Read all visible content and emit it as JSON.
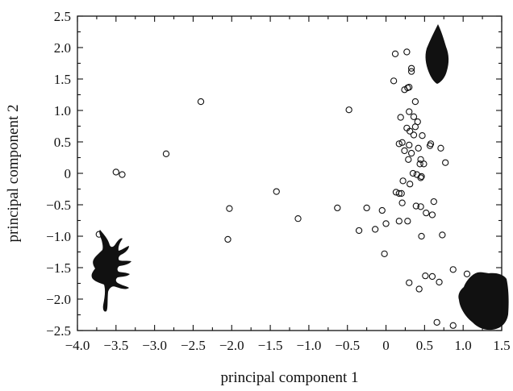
{
  "chart_data": {
    "type": "scatter",
    "title": "",
    "xlabel": "principal component 1",
    "ylabel": "principal component 2",
    "xlim": [
      -4.0,
      1.5
    ],
    "ylim": [
      -2.5,
      2.5
    ],
    "xticks": [
      -4.0,
      -3.5,
      -3.0,
      -2.5,
      -2.0,
      -1.5,
      -1.0,
      -0.5,
      0,
      0.5,
      1.0,
      1.5
    ],
    "xtick_labels": [
      "−4.0",
      "−3.5",
      "−3.0",
      "−2.5",
      "−2.0",
      "−1.5",
      "−1.0",
      "−0.5",
      "0",
      "0.5",
      "1.0",
      "1.5"
    ],
    "yticks": [
      2.5,
      2.0,
      1.5,
      1.0,
      0.5,
      0,
      -0.5,
      -1.0,
      -1.5,
      -2.0,
      -2.5
    ],
    "ytick_labels": [
      "2.5",
      "2.0",
      "1.5",
      "1.0",
      "0.5",
      "0",
      "−0.5",
      "−1.0",
      "−1.5",
      "−2.0",
      "−2.5"
    ],
    "grid": false,
    "marker": "open-circle",
    "color": "#111111",
    "series": [
      {
        "points": [
          [
            -3.72,
            -0.97
          ],
          [
            -3.5,
            0.02
          ],
          [
            -3.42,
            -0.02
          ],
          [
            -2.85,
            0.31
          ],
          [
            -2.4,
            1.14
          ],
          [
            -2.03,
            -0.56
          ],
          [
            -2.05,
            -1.05
          ],
          [
            -1.42,
            -0.29
          ],
          [
            -1.14,
            -0.72
          ],
          [
            -0.63,
            -0.55
          ],
          [
            -0.48,
            1.01
          ],
          [
            -0.35,
            -0.91
          ],
          [
            -0.25,
            -0.55
          ],
          [
            -0.14,
            -0.89
          ],
          [
            -0.05,
            -0.59
          ],
          [
            0.0,
            -0.8
          ],
          [
            -0.02,
            -1.28
          ],
          [
            0.1,
            1.47
          ],
          [
            0.12,
            1.9
          ],
          [
            0.27,
            1.93
          ],
          [
            0.28,
            1.36
          ],
          [
            0.3,
            1.37
          ],
          [
            0.24,
            1.33
          ],
          [
            0.33,
            1.67
          ],
          [
            0.33,
            1.62
          ],
          [
            0.38,
            1.14
          ],
          [
            0.3,
            0.98
          ],
          [
            0.36,
            0.9
          ],
          [
            0.19,
            0.89
          ],
          [
            0.41,
            0.82
          ],
          [
            0.38,
            0.74
          ],
          [
            0.27,
            0.72
          ],
          [
            0.31,
            0.67
          ],
          [
            0.36,
            0.61
          ],
          [
            0.47,
            0.6
          ],
          [
            0.21,
            0.49
          ],
          [
            0.17,
            0.47
          ],
          [
            0.3,
            0.45
          ],
          [
            0.42,
            0.4
          ],
          [
            0.57,
            0.44
          ],
          [
            0.58,
            0.47
          ],
          [
            0.24,
            0.36
          ],
          [
            0.33,
            0.32
          ],
          [
            0.45,
            0.22
          ],
          [
            0.29,
            0.22
          ],
          [
            0.44,
            0.15
          ],
          [
            0.49,
            0.15
          ],
          [
            0.71,
            0.4
          ],
          [
            0.77,
            0.17
          ],
          [
            0.35,
            0.0
          ],
          [
            0.4,
            -0.02
          ],
          [
            0.46,
            -0.05
          ],
          [
            0.45,
            -0.07
          ],
          [
            0.22,
            -0.12
          ],
          [
            0.31,
            -0.17
          ],
          [
            0.13,
            -0.3
          ],
          [
            0.17,
            -0.32
          ],
          [
            0.2,
            -0.32
          ],
          [
            0.21,
            -0.47
          ],
          [
            0.39,
            -0.52
          ],
          [
            0.45,
            -0.53
          ],
          [
            0.62,
            -0.45
          ],
          [
            0.52,
            -0.63
          ],
          [
            0.6,
            -0.66
          ],
          [
            0.17,
            -0.76
          ],
          [
            0.28,
            -0.76
          ],
          [
            0.46,
            -1.0
          ],
          [
            0.73,
            -0.98
          ],
          [
            0.87,
            -1.53
          ],
          [
            0.51,
            -1.63
          ],
          [
            0.6,
            -1.64
          ],
          [
            0.69,
            -1.73
          ],
          [
            0.3,
            -1.74
          ],
          [
            0.43,
            -1.84
          ],
          [
            0.66,
            -2.37
          ],
          [
            0.87,
            -2.42
          ],
          [
            1.05,
            -1.6
          ],
          [
            1.17,
            -1.8
          ]
        ]
      }
    ]
  }
}
